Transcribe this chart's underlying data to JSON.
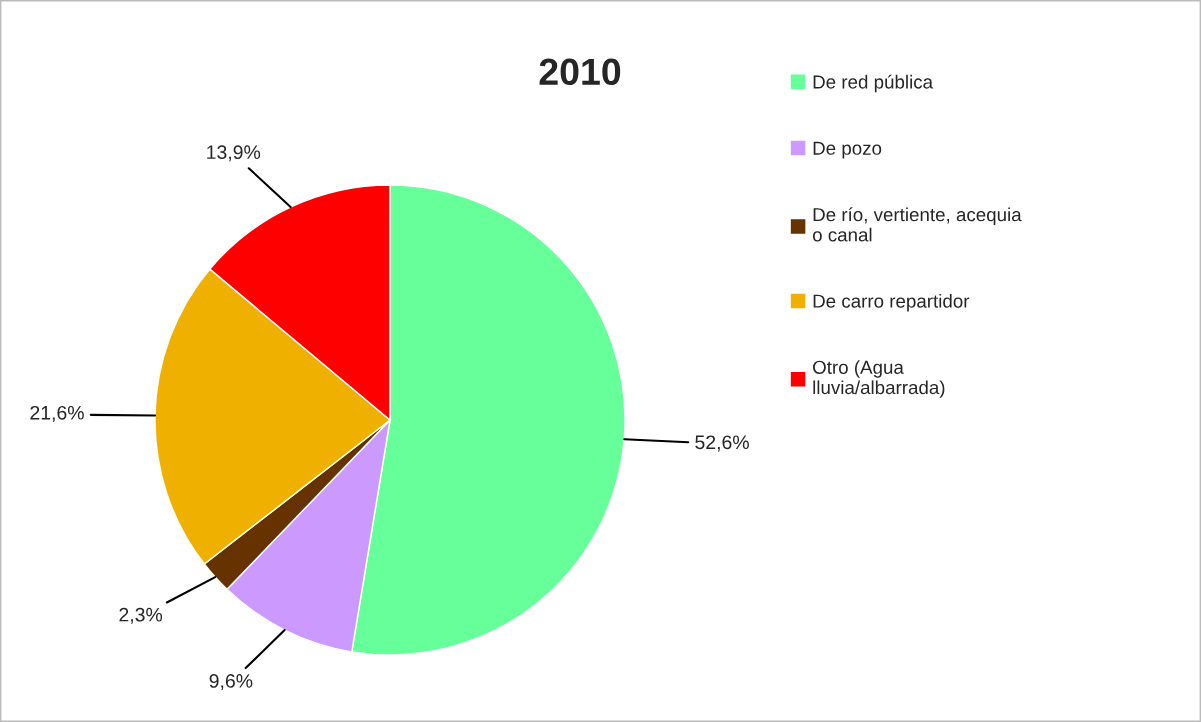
{
  "chart_data": {
    "type": "pie",
    "title": "2010",
    "categories": [
      "De red pública",
      "De pozo",
      "De río, vertiente, acequia\no canal",
      "De carro repartidor",
      "Otro (Agua\nlluvia/albarrada)"
    ],
    "values": [
      52.6,
      9.6,
      2.3,
      21.6,
      13.9
    ],
    "value_labels": [
      "52,6%",
      "9,6%",
      "2,3%",
      "21,6%",
      "13,9%"
    ],
    "colors": [
      "#66ff99",
      "#cc99ff",
      "#663300",
      "#f0b000",
      "#ff0000"
    ],
    "legend": "right"
  }
}
